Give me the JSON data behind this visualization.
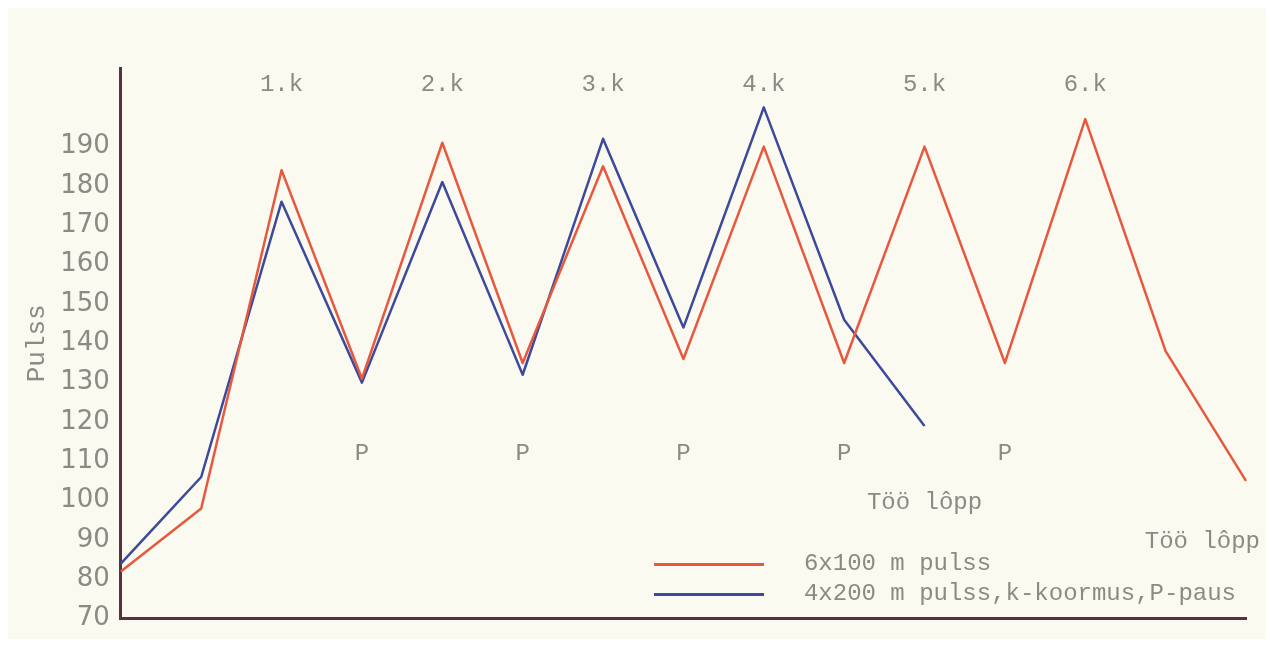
{
  "chart_data": {
    "type": "line",
    "ylabel": "Pulss",
    "categories": [
      null,
      null,
      null,
      null,
      null,
      null,
      null,
      null,
      null,
      null,
      null,
      null,
      null,
      null,
      null
    ],
    "series": [
      {
        "name": "6x100 m pulss",
        "color": "#e8583f",
        "values": [
          82,
          98,
          184,
          131,
          191,
          135,
          185,
          136,
          190,
          135,
          190,
          135,
          197,
          138,
          105
        ]
      },
      {
        "name": "4x200 m pulss,k-koormus,P-paus",
        "color": "#3d4a9c",
        "values": [
          84,
          106,
          176,
          130,
          181,
          132,
          192,
          144,
          200,
          146,
          119,
          null,
          null,
          null,
          null
        ]
      }
    ],
    "ylim": [
      70,
      210
    ],
    "yticks": [
      70,
      80,
      90,
      100,
      110,
      120,
      130,
      140,
      150,
      160,
      170,
      180,
      190
    ],
    "grid": false,
    "legend": "bottom right",
    "marker": "none",
    "line_style": "solid",
    "annotations": [
      "1.k",
      "2.k",
      "3.k",
      "4.k",
      "5.k",
      "6.k",
      "P",
      "P",
      "P",
      "P",
      "P",
      "Töö lôpp",
      "Töö lôpp"
    ]
  }
}
